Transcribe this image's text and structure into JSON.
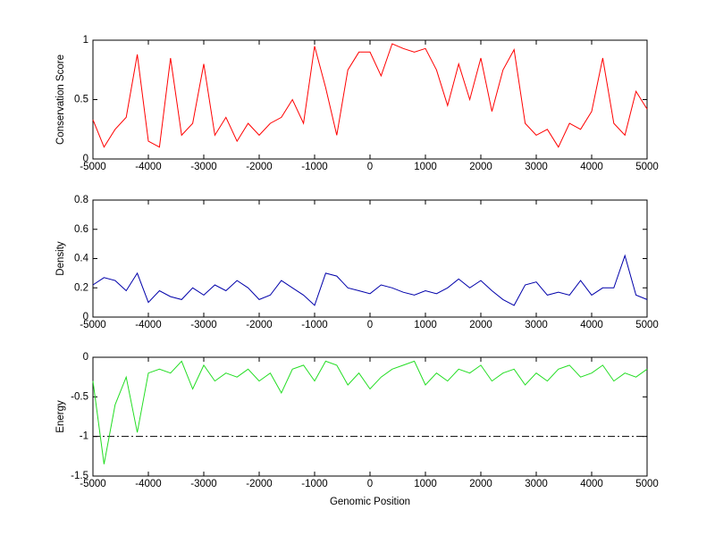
{
  "chart_data": [
    {
      "type": "line",
      "ylabel": "Conservation Score",
      "color": "#ff0000",
      "x": [
        -5000,
        -4800,
        -4600,
        -4400,
        -4200,
        -4000,
        -3800,
        -3600,
        -3400,
        -3200,
        -3000,
        -2800,
        -2600,
        -2400,
        -2200,
        -2000,
        -1800,
        -1600,
        -1400,
        -1200,
        -1000,
        -800,
        -600,
        -400,
        -200,
        0,
        200,
        400,
        600,
        800,
        1000,
        1200,
        1400,
        1600,
        1800,
        2000,
        2200,
        2400,
        2600,
        2800,
        3000,
        3200,
        3400,
        3600,
        3800,
        4000,
        4200,
        4400,
        4600,
        4800,
        5000
      ],
      "values": [
        0.33,
        0.1,
        0.25,
        0.35,
        0.88,
        0.15,
        0.1,
        0.85,
        0.2,
        0.3,
        0.8,
        0.2,
        0.35,
        0.15,
        0.3,
        0.2,
        0.3,
        0.35,
        0.5,
        0.3,
        0.95,
        0.6,
        0.2,
        0.75,
        0.9,
        0.9,
        0.7,
        0.97,
        0.93,
        0.9,
        0.93,
        0.75,
        0.45,
        0.8,
        0.5,
        0.85,
        0.4,
        0.75,
        0.92,
        0.3,
        0.2,
        0.25,
        0.1,
        0.3,
        0.25,
        0.4,
        0.85,
        0.3,
        0.2,
        0.57,
        0.42
      ],
      "xlim": [
        -5000,
        5000
      ],
      "xticks": [
        -5000,
        -4000,
        -3000,
        -2000,
        -1000,
        0,
        1000,
        2000,
        3000,
        4000,
        5000
      ],
      "ylim": [
        0,
        1
      ],
      "yticks": [
        0,
        0.5,
        1
      ]
    },
    {
      "type": "line",
      "ylabel": "Density",
      "color": "#0000aa",
      "x": [
        -5000,
        -4800,
        -4600,
        -4400,
        -4200,
        -4000,
        -3800,
        -3600,
        -3400,
        -3200,
        -3000,
        -2800,
        -2600,
        -2400,
        -2200,
        -2000,
        -1800,
        -1600,
        -1400,
        -1200,
        -1000,
        -800,
        -600,
        -400,
        -200,
        0,
        200,
        400,
        600,
        800,
        1000,
        1200,
        1400,
        1600,
        1800,
        2000,
        2200,
        2400,
        2600,
        2800,
        3000,
        3200,
        3400,
        3600,
        3800,
        4000,
        4200,
        4400,
        4600,
        4800,
        5000
      ],
      "values": [
        0.22,
        0.27,
        0.25,
        0.18,
        0.3,
        0.1,
        0.18,
        0.14,
        0.12,
        0.2,
        0.15,
        0.22,
        0.18,
        0.25,
        0.2,
        0.12,
        0.15,
        0.25,
        0.2,
        0.15,
        0.08,
        0.3,
        0.28,
        0.2,
        0.18,
        0.16,
        0.22,
        0.2,
        0.17,
        0.15,
        0.18,
        0.16,
        0.2,
        0.26,
        0.2,
        0.25,
        0.18,
        0.12,
        0.08,
        0.22,
        0.24,
        0.15,
        0.17,
        0.15,
        0.25,
        0.15,
        0.2,
        0.2,
        0.42,
        0.15,
        0.12
      ],
      "xlim": [
        -5000,
        5000
      ],
      "xticks": [
        -5000,
        -4000,
        -3000,
        -2000,
        -1000,
        0,
        1000,
        2000,
        3000,
        4000,
        5000
      ],
      "ylim": [
        0,
        0.8
      ],
      "yticks": [
        0,
        0.2,
        0.4,
        0.6,
        0.8
      ]
    },
    {
      "type": "line",
      "ylabel": "Energy",
      "xlabel": "Genomic Position",
      "color": "#22dd22",
      "x": [
        -5000,
        -4800,
        -4600,
        -4400,
        -4200,
        -4000,
        -3800,
        -3600,
        -3400,
        -3200,
        -3000,
        -2800,
        -2600,
        -2400,
        -2200,
        -2000,
        -1800,
        -1600,
        -1400,
        -1200,
        -1000,
        -800,
        -600,
        -400,
        -200,
        0,
        200,
        400,
        600,
        800,
        1000,
        1200,
        1400,
        1600,
        1800,
        2000,
        2200,
        2400,
        2600,
        2800,
        3000,
        3200,
        3400,
        3600,
        3800,
        4000,
        4200,
        4400,
        4600,
        4800,
        5000
      ],
      "values": [
        -0.3,
        -1.35,
        -0.6,
        -0.25,
        -0.95,
        -0.2,
        -0.15,
        -0.2,
        -0.05,
        -0.4,
        -0.1,
        -0.3,
        -0.2,
        -0.25,
        -0.15,
        -0.3,
        -0.2,
        -0.45,
        -0.15,
        -0.1,
        -0.3,
        -0.05,
        -0.1,
        -0.35,
        -0.2,
        -0.4,
        -0.25,
        -0.15,
        -0.1,
        -0.05,
        -0.35,
        -0.2,
        -0.3,
        -0.15,
        -0.2,
        -0.1,
        -0.3,
        -0.2,
        -0.15,
        -0.35,
        -0.2,
        -0.3,
        -0.15,
        -0.1,
        -0.25,
        -0.2,
        -0.1,
        -0.3,
        -0.2,
        -0.25,
        -0.15
      ],
      "hline": -1,
      "xlim": [
        -5000,
        5000
      ],
      "xticks": [
        -5000,
        -4000,
        -3000,
        -2000,
        -1000,
        0,
        1000,
        2000,
        3000,
        4000,
        5000
      ],
      "ylim": [
        -1.5,
        0
      ],
      "yticks": [
        -1.5,
        -1,
        -0.5,
        0
      ]
    }
  ]
}
